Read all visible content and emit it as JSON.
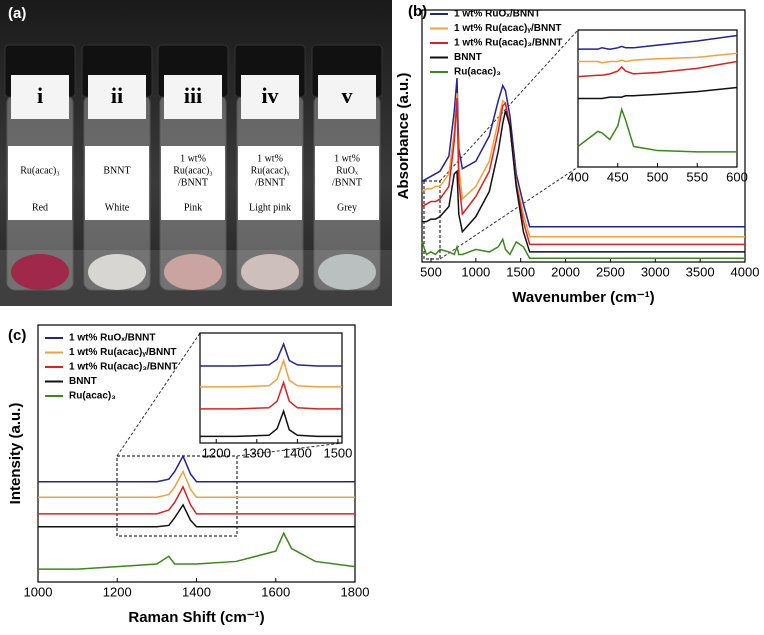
{
  "photo": {
    "label": "(a)",
    "vials": [
      {
        "numeral": "i",
        "name": [
          "Ru(acac)₃"
        ],
        "color": "Red",
        "powder": "#a0284a"
      },
      {
        "numeral": "ii",
        "name": [
          "BNNT"
        ],
        "color": "White",
        "powder": "#d8d6d2"
      },
      {
        "numeral": "iii",
        "name": [
          "1 wt%",
          "Ru(acac)₃",
          "/BNNT"
        ],
        "color": "Pink",
        "powder": "#c9a4a0"
      },
      {
        "numeral": "iv",
        "name": [
          "1 wt%",
          "Ru(acac)ᵧ",
          "/BNNT"
        ],
        "color": "Light pink",
        "powder": "#cdbfbc"
      },
      {
        "numeral": "v",
        "name": [
          "1 wt%",
          "RuOₓ",
          "/BNNT"
        ],
        "color": "Grey",
        "powder": "#b9c0bf"
      }
    ]
  },
  "chart_data": [
    {
      "type": "line",
      "label": "(b)",
      "xlabel": "Wavenumber (cm⁻¹)",
      "ylabel": "Absorbance (a.u.)",
      "xlim": [
        400,
        4000
      ],
      "xticks": [
        500,
        1000,
        1500,
        2000,
        2500,
        3000,
        3500,
        4000
      ],
      "ylim": [
        0,
        10
      ],
      "x": [
        400,
        450,
        500,
        550,
        600,
        700,
        760,
        790,
        810,
        850,
        1000,
        1150,
        1250,
        1300,
        1330,
        1380,
        1450,
        1530,
        1600,
        2000,
        3000,
        4000
      ],
      "series": [
        {
          "name": "1 wt% RuOₓ/BNNT",
          "color": "#22229a",
          "values": [
            3.2,
            3.3,
            3.4,
            3.5,
            3.6,
            4.2,
            6.0,
            7.3,
            4.5,
            3.7,
            4.0,
            5.0,
            6.4,
            7.0,
            6.8,
            5.8,
            3.5,
            2.3,
            1.4,
            1.4,
            1.4,
            1.4
          ]
        },
        {
          "name": "1 wt% Ru(acac)ᵧ/BNNT",
          "color": "#f5a040",
          "values": [
            2.8,
            2.9,
            2.9,
            3.0,
            3.0,
            3.5,
            5.2,
            6.7,
            3.8,
            2.5,
            3.0,
            4.0,
            5.6,
            6.4,
            6.3,
            5.3,
            3.2,
            1.9,
            1.0,
            1.0,
            1.0,
            1.0
          ]
        },
        {
          "name": "1 wt% Ru(acac)₃/BNNT",
          "color": "#e02020",
          "values": [
            2.2,
            2.3,
            2.4,
            2.4,
            2.5,
            3.0,
            4.8,
            6.5,
            3.2,
            1.9,
            2.6,
            3.6,
            5.2,
            6.2,
            6.3,
            5.4,
            3.1,
            1.6,
            0.7,
            0.7,
            0.7,
            0.7
          ]
        },
        {
          "name": "BNNT",
          "color": "#111111",
          "values": [
            1.6,
            1.6,
            1.7,
            1.7,
            1.8,
            2.2,
            3.5,
            3.6,
            1.9,
            1.2,
            1.8,
            2.8,
            4.4,
            5.5,
            6.0,
            5.4,
            3.0,
            1.2,
            0.4,
            0.4,
            0.4,
            0.4
          ]
        },
        {
          "name": "Ru(acac)₃",
          "color": "#3a8a1a",
          "values": [
            0.8,
            0.3,
            0.4,
            0.3,
            0.5,
            0.4,
            0.3,
            0.6,
            0.3,
            0.3,
            0.5,
            0.4,
            0.6,
            0.9,
            0.5,
            0.3,
            0.8,
            0.6,
            0.15,
            0.15,
            0.15,
            0.15
          ]
        }
      ],
      "inset": {
        "xlim": [
          400,
          600
        ],
        "xticks": [
          400,
          450,
          500,
          550,
          600
        ],
        "ylim": [
          0,
          10
        ],
        "x": [
          400,
          425,
          430,
          440,
          450,
          455,
          460,
          470,
          500,
          550,
          600
        ],
        "series": [
          {
            "color": "#22229a",
            "values": [
              8.6,
              8.6,
              8.7,
              8.6,
              8.7,
              8.8,
              8.7,
              8.7,
              8.9,
              9.2,
              9.6
            ]
          },
          {
            "color": "#f5a040",
            "values": [
              7.7,
              7.7,
              7.6,
              7.7,
              7.7,
              7.8,
              7.7,
              7.8,
              7.9,
              8.0,
              8.3
            ]
          },
          {
            "color": "#e02020",
            "values": [
              6.6,
              6.7,
              6.7,
              6.8,
              7.0,
              7.3,
              7.0,
              6.8,
              6.9,
              7.2,
              7.7
            ]
          },
          {
            "color": "#111111",
            "values": [
              5.0,
              5.0,
              5.0,
              5.1,
              5.1,
              5.1,
              5.2,
              5.2,
              5.3,
              5.5,
              5.8
            ]
          },
          {
            "color": "#3a8a1a",
            "values": [
              1.5,
              2.6,
              2.5,
              2.0,
              3.0,
              4.2,
              3.4,
              1.5,
              1.2,
              1.1,
              1.1
            ]
          }
        ]
      }
    },
    {
      "type": "line",
      "label": "(c)",
      "xlabel": "Raman Shift (cm⁻¹)",
      "ylabel": "Intensity (a.u.)",
      "xlim": [
        1000,
        1800
      ],
      "xticks": [
        1000,
        1200,
        1400,
        1600,
        1800
      ],
      "ylim": [
        0,
        10
      ],
      "x": [
        1000,
        1100,
        1200,
        1300,
        1330,
        1345,
        1366,
        1385,
        1400,
        1500,
        1600,
        1620,
        1640,
        1700,
        1800
      ],
      "series": [
        {
          "name": "1 wt% RuOₓ/BNNT",
          "color": "#22229a",
          "values": [
            3.9,
            3.9,
            3.9,
            3.9,
            4.0,
            4.3,
            4.9,
            4.2,
            3.9,
            3.9,
            3.9,
            3.9,
            3.9,
            3.9,
            3.9
          ]
        },
        {
          "name": "1 wt% Ru(acac)ᵧ/BNNT",
          "color": "#f5a040",
          "values": [
            3.3,
            3.3,
            3.3,
            3.3,
            3.4,
            3.7,
            4.3,
            3.6,
            3.3,
            3.3,
            3.3,
            3.3,
            3.3,
            3.3,
            3.3
          ]
        },
        {
          "name": "1 wt% Ru(acac)₃/BNNT",
          "color": "#e02020",
          "values": [
            2.65,
            2.65,
            2.65,
            2.65,
            2.8,
            3.1,
            3.7,
            3.0,
            2.65,
            2.65,
            2.65,
            2.65,
            2.65,
            2.65,
            2.65
          ]
        },
        {
          "name": "BNNT",
          "color": "#111111",
          "values": [
            2.15,
            2.15,
            2.15,
            2.15,
            2.2,
            2.5,
            3.0,
            2.4,
            2.15,
            2.15,
            2.15,
            2.15,
            2.15,
            2.15,
            2.15
          ]
        },
        {
          "name": "Ru(acac)₃",
          "color": "#3a8a1a",
          "values": [
            0.5,
            0.5,
            0.6,
            0.7,
            1.0,
            0.7,
            0.7,
            0.7,
            0.7,
            0.8,
            1.2,
            1.9,
            1.3,
            0.8,
            0.6
          ]
        }
      ],
      "inset": {
        "xlim": [
          1160,
          1510
        ],
        "xticks": [
          1200,
          1300,
          1400,
          1500
        ],
        "ylim": [
          0,
          10
        ],
        "x": [
          1160,
          1250,
          1330,
          1350,
          1366,
          1380,
          1400,
          1450,
          1510
        ],
        "series": [
          {
            "color": "#22229a",
            "values": [
              7.0,
              7.0,
              7.1,
              7.6,
              9.0,
              7.5,
              7.1,
              7.0,
              7.0
            ]
          },
          {
            "color": "#f5a040",
            "values": [
              5.1,
              5.1,
              5.2,
              5.8,
              7.5,
              5.7,
              5.2,
              5.1,
              5.1
            ]
          },
          {
            "color": "#e02020",
            "values": [
              3.1,
              3.1,
              3.2,
              3.8,
              5.5,
              3.8,
              3.2,
              3.1,
              3.1
            ]
          },
          {
            "color": "#111111",
            "values": [
              0.6,
              0.6,
              0.7,
              1.3,
              2.9,
              1.2,
              0.7,
              0.6,
              0.6
            ]
          }
        ]
      }
    }
  ]
}
